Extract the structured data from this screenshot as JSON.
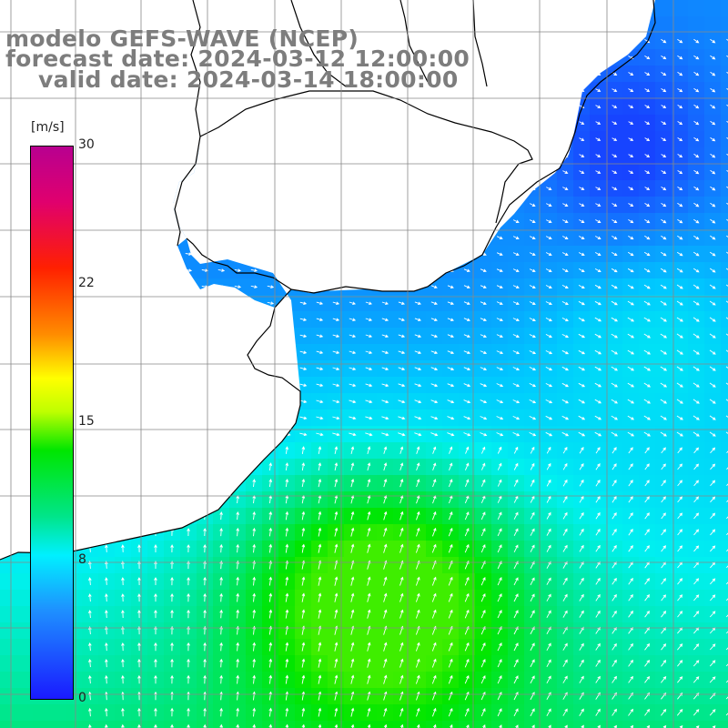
{
  "title_lines": [
    "modelo GEFS-WAVE (NCEP)",
    "forecast date: 2024-03-12 12:00:00",
    "valid date: 2024-03-14 18:00:00"
  ],
  "legend": {
    "unit": "[m/s]",
    "ticks": [
      "30",
      "22",
      "15",
      "8",
      "0"
    ],
    "tick_values": [
      30,
      22,
      15,
      8,
      0
    ],
    "colors": [
      "#1a1aff",
      "#1e90ff",
      "#00f0ff",
      "#00e600",
      "#ffff00",
      "#ff8c00",
      "#ff2000",
      "#b80090"
    ]
  },
  "map": {
    "land_color": "#ffffff",
    "coast_color": "#000000",
    "grid_color": "#888888",
    "arrow_color": "#ffffff"
  }
}
